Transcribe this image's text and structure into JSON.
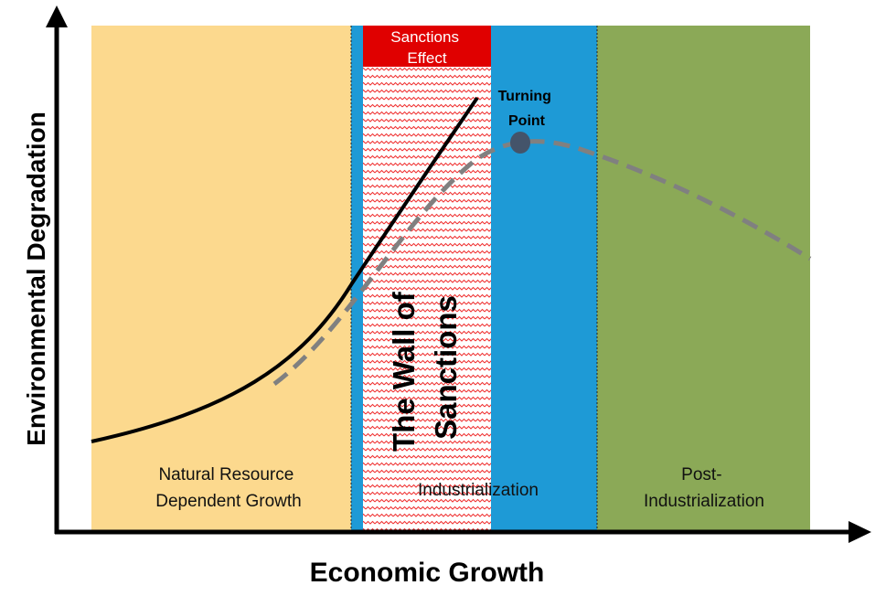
{
  "axes": {
    "y_label": "Environmental Degradation",
    "x_label": "Economic Growth"
  },
  "stages": [
    {
      "lines": [
        "Natural Resource",
        "Dependent Growth"
      ],
      "color": "#fcd98e"
    },
    {
      "lines": [
        "Industrialization"
      ],
      "color": "#1e9ad6"
    },
    {
      "lines": [
        "Post-",
        "Industrialization"
      ],
      "color": "#8ba957"
    }
  ],
  "sanctions_effect": {
    "lines": [
      "Sanctions",
      "Effect"
    ],
    "color": "#e00000"
  },
  "wall": {
    "lines": [
      "The Wall of",
      "Sanctions"
    ],
    "pattern_color": "#f03030"
  },
  "turning_point": {
    "lines": [
      "Turning",
      "Point"
    ],
    "color": "#44546a"
  },
  "curves": {
    "actual_color": "#000000",
    "expected_color": "#808080"
  }
}
